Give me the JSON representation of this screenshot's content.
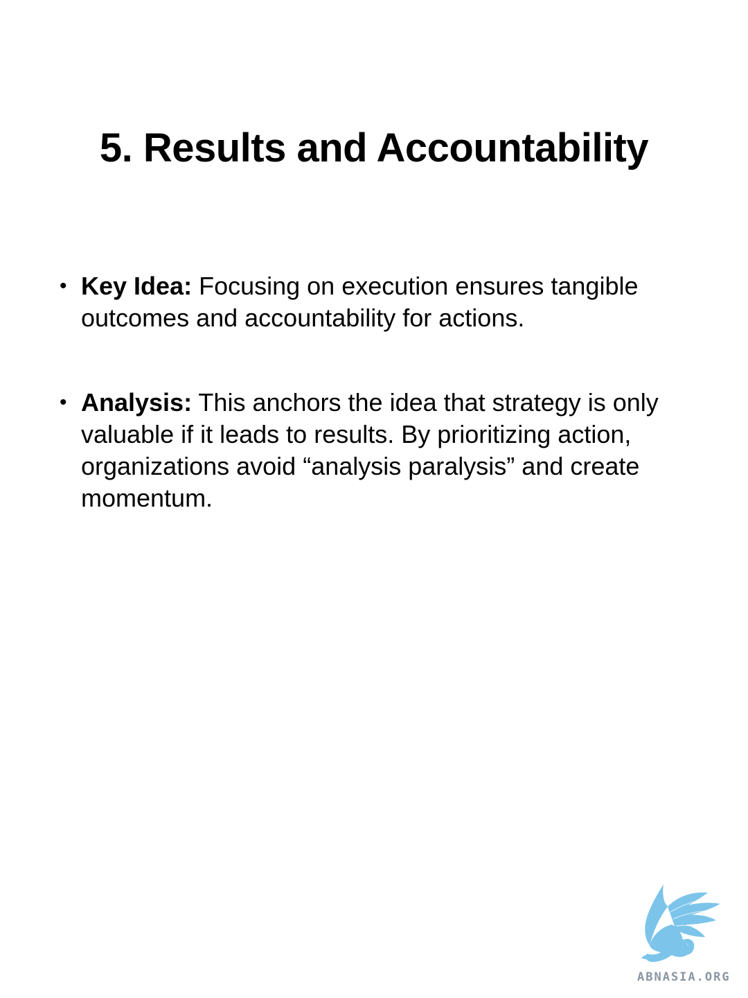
{
  "slide": {
    "title": "5. Results and Accountability",
    "bullets": [
      {
        "label": "Key Idea:",
        "text": " Focusing on execution ensures tangible outcomes and accountability for actions."
      },
      {
        "label": "Analysis:",
        "text": " This anchors the idea that strategy is only valuable if it leads to results. By prioritizing action, organizations avoid “analysis paralysis” and create momentum."
      }
    ],
    "bullet_symbol": "•"
  },
  "logo": {
    "wordmark": "ABNASIA.ORG",
    "icon": "griffin-icon",
    "color": "#7cc4ea"
  }
}
